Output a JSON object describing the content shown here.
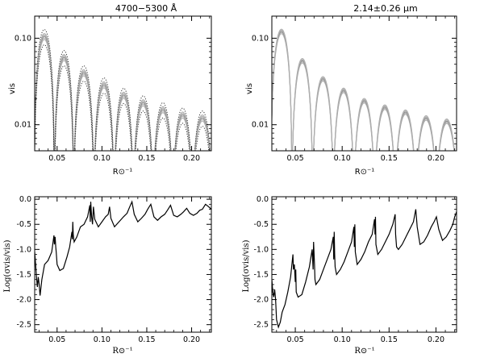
{
  "chart_data": [
    {
      "type": "line",
      "title": "4700−5300 Å",
      "xlabel": "R⊙⁻¹",
      "ylabel": "vis",
      "yscale": "log",
      "xlim": [
        0.025,
        0.222
      ],
      "ylim": [
        0.005,
        0.18
      ],
      "xticks": [
        0.05,
        0.1,
        0.15,
        0.2
      ],
      "xtick_labels": [
        "0.05",
        "0.10",
        "0.15",
        "0.20"
      ],
      "yticks": [
        0.01,
        0.1
      ],
      "ytick_labels": [
        "0.01",
        "0.10"
      ],
      "lobe_zeros": [
        0.0245,
        0.047,
        0.0685,
        0.091,
        0.1135,
        0.135,
        0.157,
        0.179,
        0.201,
        0.223
      ],
      "lobe_peaks": [
        0.105,
        0.06,
        0.04,
        0.029,
        0.022,
        0.018,
        0.015,
        0.013,
        0.012
      ],
      "series": [
        {
          "name": "models (grey band)",
          "style": "solid-grey",
          "scales": [
            0.92,
            0.96,
            1.0,
            1.04,
            1.08
          ]
        },
        {
          "name": "upper dotted",
          "style": "dotted",
          "scales": [
            1.2
          ]
        },
        {
          "name": "lower dotted",
          "style": "dotted",
          "scales": [
            0.8
          ]
        }
      ]
    },
    {
      "type": "line",
      "title": "2.14±0.26 μm",
      "xlabel": "R⊙⁻¹",
      "ylabel": "vis",
      "yscale": "log",
      "xlim": [
        0.025,
        0.222
      ],
      "ylim": [
        0.005,
        0.18
      ],
      "xticks": [
        0.05,
        0.1,
        0.15,
        0.2
      ],
      "xtick_labels": [
        "0.05",
        "0.10",
        "0.15",
        "0.20"
      ],
      "yticks": [
        0.01,
        0.1
      ],
      "ytick_labels": [
        "0.01",
        "0.10"
      ],
      "lobe_zeros": [
        0.024,
        0.0465,
        0.0685,
        0.0905,
        0.1125,
        0.1345,
        0.1565,
        0.1785,
        0.2005,
        0.2225
      ],
      "lobe_peaks": [
        0.12,
        0.055,
        0.034,
        0.025,
        0.019,
        0.016,
        0.014,
        0.012,
        0.011
      ],
      "series": [
        {
          "name": "models (grey band)",
          "style": "solid-grey",
          "scales": [
            0.94,
            0.97,
            1.0,
            1.03,
            1.06
          ]
        }
      ]
    },
    {
      "type": "line",
      "title": "",
      "xlabel": "R⊙⁻¹",
      "ylabel": "Log(σvis/vis)",
      "xlim": [
        0.025,
        0.222
      ],
      "ylim": [
        -2.65,
        0.05
      ],
      "xticks": [
        0.05,
        0.1,
        0.15,
        0.2
      ],
      "xtick_labels": [
        "0.05",
        "0.10",
        "0.15",
        "0.20"
      ],
      "yticks": [
        0.0,
        -0.5,
        -1.0,
        -1.5,
        -2.0,
        -2.5
      ],
      "ytick_labels": [
        "0.0",
        "-0.5",
        "-1.0",
        "-1.5",
        "-2.0",
        "-2.5"
      ],
      "series": [
        {
          "name": "Log(σvis/vis)",
          "x": [
            0.025,
            0.027,
            0.028,
            0.029,
            0.03,
            0.031,
            0.033,
            0.036,
            0.04,
            0.044,
            0.0465,
            0.047,
            0.0478,
            0.0485,
            0.049,
            0.05,
            0.053,
            0.057,
            0.061,
            0.064,
            0.0665,
            0.067,
            0.0675,
            0.068,
            0.069,
            0.072,
            0.076,
            0.08,
            0.084,
            0.0865,
            0.087,
            0.0875,
            0.0885,
            0.0895,
            0.0905,
            0.092,
            0.096,
            0.1,
            0.104,
            0.107,
            0.1085,
            0.11,
            0.114,
            0.119,
            0.124,
            0.128,
            0.131,
            0.1335,
            0.136,
            0.14,
            0.144,
            0.148,
            0.151,
            0.1545,
            0.158,
            0.162,
            0.166,
            0.17,
            0.173,
            0.1765,
            0.18,
            0.184,
            0.188,
            0.191,
            0.1945,
            0.198,
            0.202,
            0.206,
            0.209,
            0.212,
            0.2155,
            0.219,
            0.222
          ],
          "values": [
            -1.05,
            -1.55,
            -1.75,
            -1.55,
            -1.7,
            -1.92,
            -1.6,
            -1.3,
            -1.22,
            -1.05,
            -0.72,
            -0.9,
            -0.75,
            -0.95,
            -1.05,
            -1.3,
            -1.42,
            -1.38,
            -1.15,
            -0.95,
            -0.65,
            -0.8,
            -0.45,
            -0.7,
            -0.85,
            -0.75,
            -0.55,
            -0.5,
            -0.35,
            -0.12,
            -0.45,
            -0.05,
            -0.35,
            -0.5,
            -0.15,
            -0.4,
            -0.55,
            -0.45,
            -0.35,
            -0.3,
            -0.15,
            -0.38,
            -0.55,
            -0.45,
            -0.35,
            -0.28,
            -0.15,
            -0.05,
            -0.3,
            -0.45,
            -0.38,
            -0.3,
            -0.2,
            -0.1,
            -0.35,
            -0.42,
            -0.35,
            -0.3,
            -0.22,
            -0.12,
            -0.32,
            -0.35,
            -0.3,
            -0.25,
            -0.18,
            -0.28,
            -0.32,
            -0.28,
            -0.22,
            -0.2,
            -0.1,
            -0.15,
            -0.2
          ]
        }
      ]
    },
    {
      "type": "line",
      "title": "",
      "xlabel": "R⊙⁻¹",
      "ylabel": "Log(σvis/vis)",
      "xlim": [
        0.025,
        0.222
      ],
      "ylim": [
        -2.65,
        0.05
      ],
      "xticks": [
        0.05,
        0.1,
        0.15,
        0.2
      ],
      "xtick_labels": [
        "0.05",
        "0.10",
        "0.15",
        "0.20"
      ],
      "yticks": [
        0.0,
        -0.5,
        -1.0,
        -1.5,
        -2.0,
        -2.5
      ],
      "ytick_labels": [
        "0.0",
        "-0.5",
        "-1.0",
        "-1.5",
        "-2.0",
        "-2.5"
      ],
      "series": [
        {
          "name": "Log(σvis/vis)",
          "x": [
            0.025,
            0.026,
            0.027,
            0.028,
            0.029,
            0.03,
            0.032,
            0.034,
            0.036,
            0.039,
            0.042,
            0.045,
            0.0475,
            0.048,
            0.049,
            0.05,
            0.0505,
            0.051,
            0.053,
            0.057,
            0.061,
            0.065,
            0.068,
            0.069,
            0.0695,
            0.0705,
            0.071,
            0.072,
            0.076,
            0.08,
            0.084,
            0.088,
            0.0905,
            0.091,
            0.0915,
            0.092,
            0.0925,
            0.094,
            0.098,
            0.102,
            0.106,
            0.11,
            0.1125,
            0.113,
            0.1135,
            0.114,
            0.116,
            0.12,
            0.124,
            0.128,
            0.132,
            0.1345,
            0.135,
            0.1355,
            0.136,
            0.138,
            0.142,
            0.146,
            0.15,
            0.154,
            0.1565,
            0.157,
            0.158,
            0.16,
            0.164,
            0.168,
            0.172,
            0.176,
            0.1785,
            0.18,
            0.183,
            0.187,
            0.191,
            0.195,
            0.198,
            0.2005,
            0.203,
            0.207,
            0.211,
            0.215,
            0.218,
            0.22,
            0.222
          ],
          "values": [
            -1.6,
            -1.85,
            -1.95,
            -1.8,
            -2.0,
            -2.4,
            -2.55,
            -2.45,
            -2.25,
            -2.1,
            -1.85,
            -1.55,
            -1.1,
            -1.4,
            -1.3,
            -1.65,
            -1.4,
            -1.85,
            -1.95,
            -1.9,
            -1.65,
            -1.35,
            -1.0,
            -1.4,
            -0.85,
            -1.3,
            -1.6,
            -1.7,
            -1.6,
            -1.4,
            -1.2,
            -1.0,
            -0.75,
            -1.2,
            -0.65,
            -1.1,
            -1.35,
            -1.5,
            -1.4,
            -1.25,
            -1.05,
            -0.85,
            -0.55,
            -0.95,
            -0.5,
            -1.05,
            -1.3,
            -1.2,
            -1.05,
            -0.85,
            -0.7,
            -0.4,
            -0.7,
            -0.35,
            -0.9,
            -1.1,
            -1.0,
            -0.85,
            -0.7,
            -0.5,
            -0.3,
            -0.7,
            -0.95,
            -1.0,
            -0.9,
            -0.75,
            -0.6,
            -0.45,
            -0.2,
            -0.55,
            -0.9,
            -0.85,
            -0.72,
            -0.55,
            -0.45,
            -0.35,
            -0.6,
            -0.82,
            -0.75,
            -0.62,
            -0.5,
            -0.35,
            -0.25
          ]
        }
      ]
    }
  ]
}
